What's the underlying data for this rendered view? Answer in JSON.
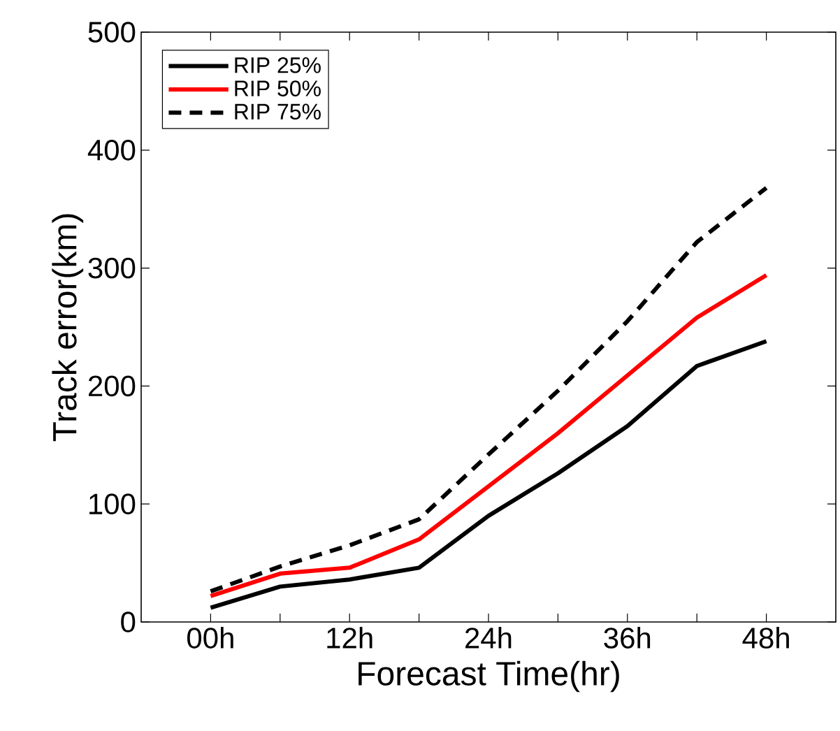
{
  "chart_data": {
    "type": "line",
    "xlabel": "Forecast Time(hr)",
    "ylabel": "Track error(km)",
    "x": [
      0,
      6,
      12,
      18,
      24,
      30,
      36,
      42,
      48
    ],
    "xlim": [
      -6,
      54
    ],
    "ylim": [
      0,
      500
    ],
    "xticks": [
      {
        "value": 0,
        "label": "00h"
      },
      {
        "value": 6,
        "label": null
      },
      {
        "value": 12,
        "label": "12h"
      },
      {
        "value": 18,
        "label": null
      },
      {
        "value": 24,
        "label": "24h"
      },
      {
        "value": 30,
        "label": null
      },
      {
        "value": 36,
        "label": "36h"
      },
      {
        "value": 42,
        "label": null
      },
      {
        "value": 48,
        "label": "48h"
      }
    ],
    "yticks": [
      0,
      100,
      200,
      300,
      400,
      500
    ],
    "legend": "top left",
    "series": [
      {
        "name": "RIP 25%",
        "color": "#000000",
        "line_style": "solid",
        "values": [
          12,
          30,
          36,
          46,
          90,
          126,
          166,
          217,
          238
        ]
      },
      {
        "name": "RIP 50%",
        "color": "#ff0000",
        "line_style": "solid",
        "values": [
          22,
          41,
          46,
          70,
          115,
          160,
          209,
          258,
          294
        ]
      },
      {
        "name": "RIP 75%",
        "color": "#000000",
        "line_style": "dashed",
        "values": [
          26,
          47,
          65,
          87,
          142,
          196,
          255,
          322,
          368
        ]
      }
    ]
  }
}
